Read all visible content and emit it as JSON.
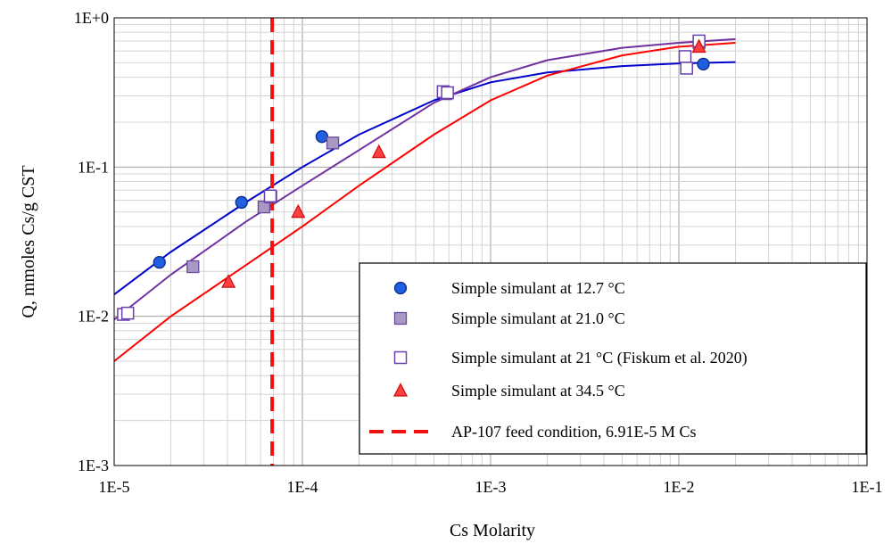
{
  "chart_data": {
    "type": "scatter",
    "x_scale": "log",
    "y_scale": "log",
    "xlabel": "Cs Molarity",
    "ylabel": "Q, mmoles Cs/g CST",
    "xlim": [
      1e-05,
      0.1
    ],
    "ylim": [
      0.001,
      1
    ],
    "x_ticks": [
      {
        "value": 1e-05,
        "label": "1E-5"
      },
      {
        "value": 0.0001,
        "label": "1E-4"
      },
      {
        "value": 0.001,
        "label": "1E-3"
      },
      {
        "value": 0.01,
        "label": "1E-2"
      },
      {
        "value": 0.1,
        "label": "1E-1"
      }
    ],
    "y_ticks": [
      {
        "value": 0.001,
        "label": "1E-3"
      },
      {
        "value": 0.01,
        "label": "1E-2"
      },
      {
        "value": 0.1,
        "label": "1E-1"
      },
      {
        "value": 1,
        "label": "1E+0"
      }
    ],
    "grid": true,
    "legend_position": "bottom-right",
    "series": [
      {
        "name": "Simple simulant at 12.7 °C",
        "marker": "circle",
        "color": "#1f5fe0",
        "edge": "#0a2b8a",
        "points": [
          [
            1.74e-05,
            0.023
          ],
          [
            4.75e-05,
            0.058
          ],
          [
            0.000127,
            0.16
          ],
          [
            0.0135,
            0.49
          ]
        ]
      },
      {
        "name": "Simple simulant at 21.0 °C",
        "marker": "square-filled",
        "color": "#a898c4",
        "edge": "#6a4a9a",
        "points": [
          [
            2.62e-05,
            0.0215
          ],
          [
            6.25e-05,
            0.054
          ],
          [
            6.8e-05,
            0.063
          ],
          [
            0.000145,
            0.145
          ],
          [
            0.00058,
            0.31
          ],
          [
            0.0128,
            0.68
          ]
        ]
      },
      {
        "name": "Simple simulant at 21 °C (Fiskum et al. 2020)",
        "marker": "square-open",
        "color": "#ffffff",
        "edge": "#6a3fb0",
        "points": [
          [
            1.12e-05,
            0.0103
          ],
          [
            1.18e-05,
            0.0105
          ],
          [
            6.75e-05,
            0.064
          ],
          [
            0.00056,
            0.32
          ],
          [
            0.00059,
            0.315
          ],
          [
            0.0108,
            0.55
          ],
          [
            0.011,
            0.46
          ],
          [
            0.0128,
            0.7
          ]
        ]
      },
      {
        "name": "Simple simulant at 34.5 °C",
        "marker": "triangle",
        "color": "#ff4040",
        "edge": "#d01010",
        "points": [
          [
            4.05e-05,
            0.017
          ],
          [
            9.5e-05,
            0.05
          ],
          [
            0.000255,
            0.126
          ],
          [
            0.0128,
            0.64
          ]
        ]
      }
    ],
    "fit_lines": [
      {
        "color": "#0000cc",
        "points": [
          [
            1e-05,
            0.014
          ],
          [
            2e-05,
            0.027
          ],
          [
            5e-05,
            0.058
          ],
          [
            0.0001,
            0.1
          ],
          [
            0.0002,
            0.165
          ],
          [
            0.0005,
            0.28
          ],
          [
            0.001,
            0.37
          ],
          [
            0.002,
            0.43
          ],
          [
            0.005,
            0.475
          ],
          [
            0.01,
            0.495
          ],
          [
            0.02,
            0.505
          ]
        ]
      },
      {
        "color": "#7030a0",
        "points": [
          [
            1e-05,
            0.0095
          ],
          [
            2e-05,
            0.019
          ],
          [
            5e-05,
            0.043
          ],
          [
            0.0001,
            0.075
          ],
          [
            0.0002,
            0.13
          ],
          [
            0.0005,
            0.27
          ],
          [
            0.001,
            0.4
          ],
          [
            0.002,
            0.52
          ],
          [
            0.005,
            0.63
          ],
          [
            0.01,
            0.68
          ],
          [
            0.02,
            0.72
          ]
        ]
      },
      {
        "color": "#ff0000",
        "points": [
          [
            1e-05,
            0.005
          ],
          [
            2e-05,
            0.01
          ],
          [
            5e-05,
            0.022
          ],
          [
            0.0001,
            0.04
          ],
          [
            0.0002,
            0.075
          ],
          [
            0.0005,
            0.165
          ],
          [
            0.001,
            0.28
          ],
          [
            0.002,
            0.41
          ],
          [
            0.005,
            0.56
          ],
          [
            0.01,
            0.64
          ],
          [
            0.02,
            0.68
          ]
        ]
      }
    ],
    "vertical_line": {
      "name": "AP-107 feed condition, 6.91E-5 M Cs",
      "x": 6.91e-05,
      "color": "#ee1111",
      "style": "dashed"
    }
  }
}
